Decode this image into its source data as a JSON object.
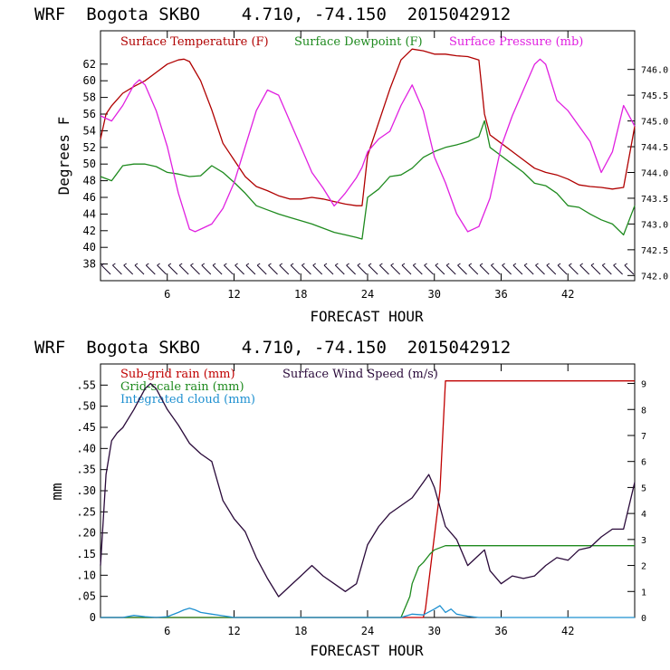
{
  "colors": {
    "temperature": "#b00000",
    "dewpoint": "#1e8a1e",
    "pressure": "#e020e0",
    "subgrid": "#c00000",
    "gridscale": "#1e8a1e",
    "cloud": "#1e90d0",
    "wind": "#2a0a3a",
    "barbs": "#1a0a2a"
  },
  "chart_data": [
    {
      "type": "line",
      "title": "WRF  Bogota SKBO    4.710, -74.150  2015042912",
      "xlabel": "FORECAST HOUR",
      "ylabel": "Degrees F",
      "xlim": [
        0,
        48
      ],
      "ylim": [
        36,
        66
      ],
      "xticks": [
        6,
        12,
        18,
        24,
        30,
        36,
        42
      ],
      "yticks": [
        38,
        40,
        42,
        44,
        46,
        48,
        50,
        52,
        54,
        56,
        58,
        60,
        62
      ],
      "y2lim": [
        741.9,
        746.75
      ],
      "y2ticks": [
        "742.0",
        "742.5",
        "743.0",
        "743.5",
        "744.0",
        "744.5",
        "745.0",
        "745.5",
        "746.0"
      ],
      "legend": [
        "Surface Temperature (F)",
        "Surface Dewpoint (F)",
        "Surface Pressure (mb)"
      ],
      "wind_barbs": "bottom-row",
      "series": [
        {
          "name": "Surface Temperature (F)",
          "axis": "left",
          "x": [
            0,
            0.5,
            1,
            2,
            3,
            4,
            5,
            6,
            7,
            7.5,
            8,
            9,
            10,
            11,
            12,
            13,
            14,
            15,
            16,
            17,
            18,
            19,
            20,
            21,
            22,
            23,
            23.5,
            24,
            25,
            26,
            27,
            28,
            29,
            30,
            31,
            32,
            33,
            34,
            34.5,
            35,
            36,
            37,
            38,
            39,
            40,
            41,
            42,
            43,
            44,
            45,
            46,
            47,
            48
          ],
          "values": [
            53,
            56,
            57,
            58.5,
            59.3,
            60,
            61,
            62,
            62.5,
            62.6,
            62.3,
            60,
            56.5,
            52.5,
            50.5,
            48.5,
            47.3,
            46.8,
            46.2,
            45.8,
            45.8,
            46,
            45.8,
            45.5,
            45.2,
            45,
            45,
            51,
            55,
            59,
            62.5,
            63.8,
            63.6,
            63.2,
            63.2,
            63,
            62.9,
            62.5,
            56,
            53.5,
            52.5,
            51.5,
            50.5,
            49.5,
            49,
            48.7,
            48.2,
            47.5,
            47.3,
            47.2,
            47,
            47.2,
            54.5
          ]
        },
        {
          "name": "Surface Dewpoint (F)",
          "axis": "left",
          "x": [
            0,
            1,
            2,
            3,
            4,
            5,
            6,
            7,
            8,
            9,
            10,
            11,
            12,
            13,
            14,
            15,
            16,
            17,
            18,
            19,
            20,
            21,
            22,
            23,
            23.5,
            24,
            25,
            26,
            27,
            28,
            29,
            30,
            31,
            32,
            33,
            34,
            34.5,
            35,
            36,
            37,
            38,
            39,
            40,
            41,
            42,
            43,
            44,
            45,
            46,
            47,
            48
          ],
          "values": [
            48.5,
            48,
            49.8,
            50,
            50,
            49.7,
            49,
            48.8,
            48.5,
            48.6,
            49.8,
            49,
            47.8,
            46.5,
            45,
            44.5,
            44,
            43.6,
            43.2,
            42.8,
            42.3,
            41.8,
            41.5,
            41.2,
            41,
            46,
            47,
            48.5,
            48.7,
            49.5,
            50.8,
            51.5,
            52,
            52.3,
            52.7,
            53.3,
            55.2,
            52,
            51,
            50,
            49,
            47.7,
            47.4,
            46.5,
            45,
            44.8,
            44,
            43.3,
            42.8,
            41.5,
            45
          ]
        },
        {
          "name": "Surface Pressure (mb)",
          "axis": "right",
          "x": [
            0,
            1,
            2,
            3,
            3.5,
            4,
            5,
            6,
            7,
            8,
            8.5,
            9,
            10,
            11,
            12,
            13,
            14,
            15,
            16,
            17,
            18,
            19,
            20,
            21,
            22,
            23,
            23.5,
            24,
            25,
            26,
            27,
            28,
            29,
            30,
            31,
            32,
            33,
            34,
            35,
            36,
            37,
            38,
            39,
            39.5,
            40,
            41,
            42,
            43,
            44,
            45,
            46,
            47,
            48
          ],
          "values": [
            745.1,
            745.0,
            745.3,
            745.7,
            745.8,
            745.7,
            745.2,
            744.5,
            743.6,
            742.9,
            742.85,
            742.9,
            743.0,
            743.3,
            743.8,
            744.5,
            745.2,
            745.6,
            745.5,
            745.0,
            744.5,
            744.0,
            743.7,
            743.35,
            743.6,
            743.9,
            744.1,
            744.4,
            744.65,
            744.8,
            745.3,
            745.7,
            745.2,
            744.3,
            743.8,
            743.2,
            742.85,
            742.95,
            743.5,
            744.5,
            745.1,
            745.6,
            746.1,
            746.2,
            746.1,
            745.4,
            745.2,
            744.9,
            744.6,
            744.0,
            744.4,
            745.3,
            744.9
          ]
        }
      ]
    },
    {
      "type": "line",
      "title": "WRF  Bogota SKBO    4.710, -74.150  2015042912",
      "xlabel": "FORECAST HOUR",
      "ylabel": "mm",
      "xlim": [
        0,
        48
      ],
      "ylim": [
        0,
        0.6
      ],
      "xticks": [
        6,
        12,
        18,
        24,
        30,
        36,
        42
      ],
      "yticks": [
        0,
        0.05,
        0.1,
        0.15,
        0.2,
        0.25,
        0.3,
        0.35,
        0.4,
        0.45,
        0.5,
        0.55
      ],
      "ytick_labels": [
        "0",
        ".05",
        ".10",
        ".15",
        ".20",
        ".25",
        ".30",
        ".35",
        ".40",
        ".45",
        ".50",
        ".55"
      ],
      "y2lim": [
        0,
        9.75
      ],
      "y2ticks": [
        0,
        1,
        2,
        3,
        4,
        5,
        6,
        7,
        8,
        9
      ],
      "legend": [
        "Sub-grid rain (mm)",
        "Grid-scale rain (mm)",
        "Integrated cloud (mm)",
        "Surface Wind Speed (m/s)"
      ],
      "series": [
        {
          "name": "Sub-grid rain (mm)",
          "axis": "left",
          "x": [
            0,
            29,
            29.2,
            30.5,
            31,
            48
          ],
          "values": [
            0,
            0,
            0.02,
            0.3,
            0.56,
            0.56
          ]
        },
        {
          "name": "Grid-scale rain (mm)",
          "axis": "left",
          "x": [
            0,
            27,
            27.8,
            28,
            28.6,
            29,
            29.6,
            30,
            31,
            48
          ],
          "values": [
            0,
            0,
            0.05,
            0.08,
            0.12,
            0.13,
            0.15,
            0.16,
            0.17,
            0.17
          ]
        },
        {
          "name": "Integrated cloud (mm)",
          "axis": "left",
          "x": [
            0,
            2,
            3,
            4,
            5,
            6,
            7,
            7.5,
            8,
            8.5,
            9,
            10,
            11,
            12,
            27,
            28,
            29,
            30,
            30.5,
            31,
            31.5,
            32,
            33,
            34,
            48
          ],
          "values": [
            0,
            0,
            0.005,
            0.002,
            0,
            0.002,
            0.012,
            0.018,
            0.022,
            0.018,
            0.012,
            0.008,
            0.004,
            0,
            0,
            0.008,
            0.006,
            0.02,
            0.028,
            0.012,
            0.02,
            0.008,
            0.003,
            0,
            0
          ]
        },
        {
          "name": "Surface Wind Speed (m/s)",
          "axis": "right",
          "x": [
            0,
            0.5,
            1,
            1.5,
            2,
            3,
            4,
            4.5,
            5,
            6,
            7,
            8,
            9,
            10,
            11,
            12,
            13,
            14,
            15,
            16,
            17,
            18,
            19,
            20,
            21,
            22,
            23,
            24,
            25,
            26,
            27,
            28,
            29,
            29.5,
            30,
            31,
            32,
            33,
            34,
            34.5,
            35,
            36,
            37,
            38,
            39,
            40,
            41,
            42,
            43,
            44,
            45,
            46,
            47,
            48
          ],
          "values": [
            2,
            5.5,
            6.8,
            7.1,
            7.3,
            8.0,
            8.8,
            9.0,
            8.8,
            8.0,
            7.4,
            6.7,
            6.3,
            6.0,
            4.5,
            3.8,
            3.3,
            2.3,
            1.5,
            0.8,
            1.2,
            1.6,
            2.0,
            1.6,
            1.3,
            1.0,
            1.3,
            2.8,
            3.5,
            4.0,
            4.3,
            4.6,
            5.2,
            5.5,
            5.0,
            3.5,
            3.0,
            2.0,
            2.4,
            2.6,
            1.8,
            1.3,
            1.6,
            1.5,
            1.6,
            2.0,
            2.3,
            2.2,
            2.6,
            2.7,
            3.1,
            3.4,
            3.4,
            5.2
          ]
        }
      ]
    }
  ]
}
